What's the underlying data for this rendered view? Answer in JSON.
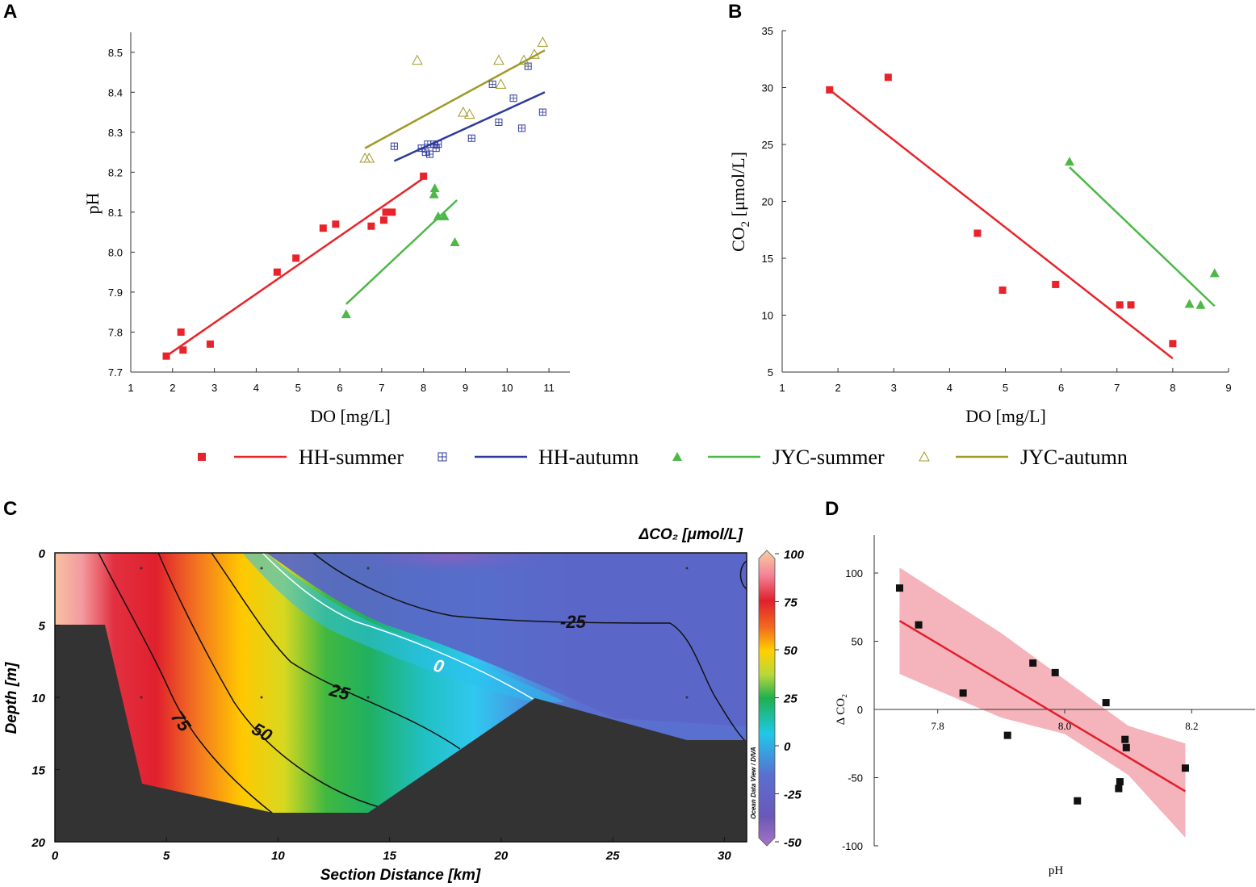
{
  "panels": {
    "a": "A",
    "b": "B",
    "c": "C",
    "d": "D"
  },
  "legend": {
    "items": [
      {
        "name": "HH-summer",
        "color": "#e8232a",
        "marker": "square"
      },
      {
        "name": "HH-autumn",
        "color": "#2e3a9a",
        "marker": "square-cross"
      },
      {
        "name": "JYC-summer",
        "color": "#4cb847",
        "marker": "triangle"
      },
      {
        "name": "JYC-autumn",
        "color": "#a09a2a",
        "marker": "triangle-open"
      }
    ]
  },
  "chart_data": [
    {
      "id": "A",
      "type": "scatter",
      "xlabel": "DO [mg/L]",
      "ylabel": "pH",
      "xlim": [
        1,
        11.5
      ],
      "ylim": [
        7.7,
        8.55
      ],
      "xticks": [
        1,
        2,
        3,
        4,
        5,
        6,
        7,
        8,
        9,
        10,
        11
      ],
      "yticks": [
        7.7,
        7.8,
        7.9,
        8.0,
        8.1,
        8.2,
        8.3,
        8.4,
        8.5
      ],
      "series": [
        {
          "name": "HH-summer",
          "points": [
            [
              1.85,
              7.74
            ],
            [
              2.2,
              7.8
            ],
            [
              2.25,
              7.755
            ],
            [
              2.9,
              7.77
            ],
            [
              4.5,
              7.95
            ],
            [
              4.95,
              7.985
            ],
            [
              5.6,
              8.06
            ],
            [
              5.9,
              8.07
            ],
            [
              6.75,
              8.065
            ],
            [
              7.05,
              8.08
            ],
            [
              7.1,
              8.1
            ],
            [
              7.25,
              8.1
            ],
            [
              8.0,
              8.19
            ]
          ],
          "fit": [
            [
              1.85,
              7.74
            ],
            [
              8.0,
              8.185
            ]
          ]
        },
        {
          "name": "HH-autumn",
          "points": [
            [
              7.3,
              8.265
            ],
            [
              7.95,
              8.26
            ],
            [
              8.05,
              8.25
            ],
            [
              8.1,
              8.27
            ],
            [
              8.15,
              8.245
            ],
            [
              8.25,
              8.27
            ],
            [
              8.3,
              8.26
            ],
            [
              8.35,
              8.27
            ],
            [
              9.15,
              8.285
            ],
            [
              9.65,
              8.42
            ],
            [
              9.8,
              8.325
            ],
            [
              10.15,
              8.385
            ],
            [
              10.35,
              8.31
            ],
            [
              10.5,
              8.465
            ],
            [
              10.85,
              8.35
            ]
          ],
          "fit": [
            [
              7.3,
              8.228
            ],
            [
              10.9,
              8.4
            ]
          ]
        },
        {
          "name": "JYC-summer",
          "points": [
            [
              6.15,
              7.845
            ],
            [
              8.25,
              8.145
            ],
            [
              8.27,
              8.16
            ],
            [
              8.35,
              8.09
            ],
            [
              8.5,
              8.09
            ],
            [
              8.75,
              8.025
            ]
          ],
          "fit": [
            [
              6.15,
              7.87
            ],
            [
              8.8,
              8.13
            ]
          ]
        },
        {
          "name": "JYC-autumn",
          "points": [
            [
              6.6,
              8.235
            ],
            [
              6.7,
              8.235
            ],
            [
              7.85,
              8.48
            ],
            [
              8.95,
              8.35
            ],
            [
              9.1,
              8.345
            ],
            [
              9.8,
              8.48
            ],
            [
              9.85,
              8.42
            ],
            [
              10.4,
              8.48
            ],
            [
              10.65,
              8.495
            ],
            [
              10.85,
              8.525
            ]
          ],
          "fit": [
            [
              6.6,
              8.26
            ],
            [
              10.9,
              8.505
            ]
          ]
        }
      ]
    },
    {
      "id": "B",
      "type": "scatter",
      "xlabel": "DO [mg/L]",
      "ylabel_main": "CO",
      "ylabel_sub": "2",
      "ylabel_rest": " [μmol/L]",
      "xlim": [
        1,
        9
      ],
      "ylim": [
        5,
        35
      ],
      "xticks": [
        1,
        2,
        3,
        4,
        5,
        6,
        7,
        8,
        9
      ],
      "yticks": [
        5,
        10,
        15,
        20,
        25,
        30,
        35
      ],
      "series": [
        {
          "name": "HH-summer",
          "points": [
            [
              1.85,
              29.8
            ],
            [
              2.9,
              30.9
            ],
            [
              4.5,
              17.2
            ],
            [
              4.95,
              12.2
            ],
            [
              5.9,
              12.7
            ],
            [
              7.05,
              10.9
            ],
            [
              7.25,
              10.9
            ],
            [
              8.0,
              7.5
            ]
          ],
          "fit": [
            [
              1.85,
              29.8
            ],
            [
              8.0,
              6.2
            ]
          ]
        },
        {
          "name": "JYC-summer",
          "points": [
            [
              6.15,
              23.5
            ],
            [
              8.3,
              11.0
            ],
            [
              8.5,
              10.9
            ],
            [
              8.75,
              13.7
            ]
          ],
          "fit": [
            [
              6.15,
              23.0
            ],
            [
              8.75,
              10.8
            ]
          ]
        }
      ]
    },
    {
      "id": "C",
      "type": "heatmap",
      "title": "ΔCO₂ [μmol/L]",
      "xlabel": "Section Distance [km]",
      "ylabel": "Depth [m]",
      "xlim": [
        0,
        31
      ],
      "ylim": [
        0,
        20
      ],
      "xticks": [
        0,
        5,
        10,
        15,
        20,
        25,
        30
      ],
      "yticks": [
        0,
        5,
        10,
        15,
        20
      ],
      "colorbar": {
        "min": -50,
        "max": 100,
        "ticks": [
          100,
          75,
          50,
          25,
          0,
          -25,
          -50
        ]
      },
      "contour_labels": [
        "75",
        "50",
        "25",
        "0",
        "-25"
      ],
      "watermark": "Ocean Data View / DIVA"
    },
    {
      "id": "D",
      "type": "scatter",
      "xlabel": "pH",
      "ylabel": "Δ CO₂",
      "xlim": [
        7.7,
        8.3
      ],
      "ylim": [
        -100,
        120
      ],
      "xticks": [
        7.8,
        8.0,
        8.2
      ],
      "xtick_labels": [
        "7.8",
        "8.0",
        "8.2"
      ],
      "yticks": [
        -100,
        -50,
        0,
        50,
        100
      ],
      "points": [
        [
          7.74,
          89
        ],
        [
          7.77,
          62
        ],
        [
          7.84,
          12
        ],
        [
          7.91,
          -19
        ],
        [
          7.95,
          34
        ],
        [
          7.985,
          27
        ],
        [
          8.02,
          -67
        ],
        [
          8.065,
          5
        ],
        [
          8.085,
          -58
        ],
        [
          8.087,
          -53
        ],
        [
          8.095,
          -22
        ],
        [
          8.097,
          -28
        ],
        [
          8.19,
          -43
        ]
      ],
      "fit": [
        [
          7.74,
          65
        ],
        [
          8.19,
          -60
        ]
      ],
      "band_upper": [
        [
          7.74,
          104
        ],
        [
          7.9,
          56
        ],
        [
          8.0,
          22
        ],
        [
          8.1,
          -12
        ],
        [
          8.19,
          -25
        ]
      ],
      "band_lower": [
        [
          7.74,
          26
        ],
        [
          7.9,
          -6
        ],
        [
          8.0,
          -18
        ],
        [
          8.1,
          -48
        ],
        [
          8.19,
          -94
        ]
      ]
    }
  ]
}
